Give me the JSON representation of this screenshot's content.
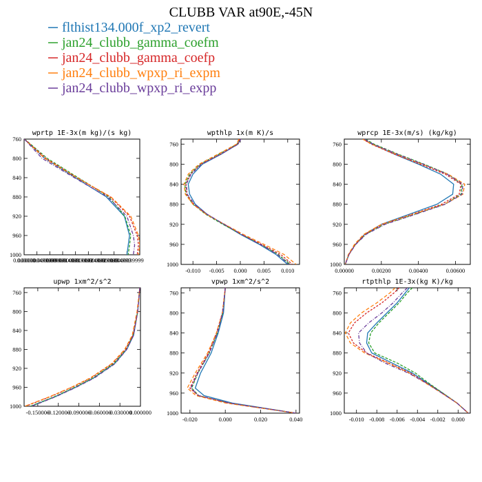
{
  "title": "CLUBB VAR at90E,-45N",
  "legend": [
    {
      "label": "flthist134.000f_xp2_revert",
      "color": "#1f77b4"
    },
    {
      "label": "jan24_clubb_gamma_coefm",
      "color": "#2ca02c"
    },
    {
      "label": "jan24_clubb_gamma_coefp",
      "color": "#d62728"
    },
    {
      "label": "jan24_clubb_wpxp_ri_expm",
      "color": "#ff7f0e"
    },
    {
      "label": "jan24_clubb_wpxp_ri_expp",
      "color": "#6a3d9a"
    }
  ],
  "chart_data": [
    {
      "type": "line",
      "title": "wprtp  1E-3x(m kg)/(s kg)",
      "ylim": [
        760,
        1000
      ],
      "yticks": [
        760,
        800,
        840,
        880,
        920,
        960,
        1000
      ],
      "y_reversed": true,
      "xlim": [
        0.0,
        4.5e-06
      ],
      "xtick_labels": [
        "0.000000",
        "0.000000499999",
        "0.0000009999",
        "0.0000014999",
        "0.0000019999",
        "0.0000024999",
        "0.0000029999",
        "0.0000034999",
        "0.0000039999"
      ],
      "y": [
        760,
        800,
        840,
        880,
        920,
        960,
        980,
        1000
      ],
      "series": [
        {
          "name": "flthist134.000f_xp2_revert",
          "values": [
            1e-08,
            8e-07,
            2e-06,
            3.2e-06,
            3.9e-06,
            4.1e-06,
            4.05e-06,
            4e-06
          ]
        },
        {
          "name": "jan24_clubb_gamma_coefm",
          "values": [
            2e-08,
            9e-07,
            2.1e-06,
            3.3e-06,
            3.92e-06,
            4.15e-06,
            4.1e-06,
            4.05e-06
          ]
        },
        {
          "name": "jan24_clubb_gamma_coefp",
          "values": [
            1e-08,
            8.5e-07,
            2.05e-06,
            3.35e-06,
            4.1e-06,
            4.4e-06,
            4.45e-06,
            4.4e-06
          ]
        },
        {
          "name": "jan24_clubb_wpxp_ri_expm",
          "values": [
            1e-08,
            8e-07,
            2.05e-06,
            3.38e-06,
            4.15e-06,
            4.45e-06,
            4.5e-06,
            4.45e-06
          ]
        },
        {
          "name": "jan24_clubb_wpxp_ri_expp",
          "values": [
            1e-08,
            7e-07,
            1.95e-06,
            3.25e-06,
            4e-06,
            4.25e-06,
            4.3e-06,
            4.25e-06
          ]
        }
      ]
    },
    {
      "type": "line",
      "title": "wpthlp  1x(m K)/s",
      "ylim": [
        750,
        1000
      ],
      "yticks": [
        760,
        800,
        840,
        880,
        920,
        960,
        1000
      ],
      "y_reversed": true,
      "xlim": [
        -0.0125,
        0.0125
      ],
      "xticks": [
        -0.01,
        -0.005,
        0.0,
        0.005,
        0.01
      ],
      "xtick_labels": [
        "-0.010",
        "-0.005",
        "0.000",
        "0.005",
        "0.010"
      ],
      "y": [
        750,
        760,
        780,
        800,
        820,
        840,
        860,
        880,
        900,
        920,
        940,
        960,
        980,
        1000
      ],
      "series": [
        {
          "name": "flthist134.000f_xp2_revert",
          "values": [
            0.0,
            -0.0005,
            -0.004,
            -0.008,
            -0.01,
            -0.011,
            -0.0107,
            -0.0095,
            -0.007,
            -0.0035,
            0.0,
            0.004,
            0.0075,
            0.01
          ]
        },
        {
          "name": "jan24_clubb_gamma_coefm",
          "values": [
            -0.0002,
            -0.0007,
            -0.0045,
            -0.0085,
            -0.0107,
            -0.0117,
            -0.0115,
            -0.01,
            -0.0073,
            -0.0037,
            0.0002,
            0.0043,
            0.008,
            0.0105
          ]
        },
        {
          "name": "jan24_clubb_gamma_coefp",
          "values": [
            -0.0001,
            -0.0006,
            -0.0042,
            -0.0083,
            -0.0105,
            -0.0115,
            -0.0113,
            -0.0098,
            -0.0071,
            -0.0034,
            0.0003,
            0.0045,
            0.0085,
            0.011
          ]
        },
        {
          "name": "jan24_clubb_wpxp_ri_expm",
          "values": [
            -0.0003,
            -0.0008,
            -0.0047,
            -0.0087,
            -0.011,
            -0.0119,
            -0.0116,
            -0.01,
            -0.0072,
            -0.0033,
            0.0006,
            0.005,
            0.0092,
            0.0118
          ]
        },
        {
          "name": "jan24_clubb_wpxp_ri_expp",
          "values": [
            0.0001,
            -0.0004,
            -0.0041,
            -0.0082,
            -0.0104,
            -0.0114,
            -0.0112,
            -0.0097,
            -0.007,
            -0.0034,
            0.0002,
            0.0042,
            0.0078,
            0.0103
          ]
        }
      ]
    },
    {
      "type": "line",
      "title": "wprcp  1E-3x(m/s) (kg/kg)",
      "ylim": [
        750,
        1000
      ],
      "yticks": [
        760,
        800,
        840,
        880,
        920,
        960,
        1000
      ],
      "y_reversed": true,
      "xlim": [
        0.0,
        0.0068
      ],
      "xticks": [
        0.0,
        0.002,
        0.004,
        0.006
      ],
      "xtick_labels": [
        "0.00000",
        "0.00200",
        "0.00400",
        "0.00600"
      ],
      "y": [
        750,
        760,
        780,
        800,
        820,
        840,
        860,
        880,
        900,
        920,
        940,
        960,
        980,
        1000
      ],
      "series": [
        {
          "name": "flthist134.000f_xp2_revert",
          "values": [
            0.00105,
            0.0015,
            0.0027,
            0.004,
            0.0052,
            0.0059,
            0.00585,
            0.005,
            0.0035,
            0.002,
            0.0011,
            0.0006,
            0.00025,
            5e-05
          ]
        },
        {
          "name": "jan24_clubb_gamma_coefm",
          "values": [
            0.00115,
            0.0016,
            0.0029,
            0.0043,
            0.0056,
            0.00635,
            0.0063,
            0.0054,
            0.0038,
            0.00215,
            0.00115,
            0.0006,
            0.00025,
            5e-05
          ]
        },
        {
          "name": "jan24_clubb_gamma_coefp",
          "values": [
            0.001,
            0.00145,
            0.0027,
            0.0041,
            0.00545,
            0.0063,
            0.0062,
            0.00525,
            0.00365,
            0.00205,
            0.0011,
            0.0006,
            0.00025,
            5e-05
          ]
        },
        {
          "name": "jan24_clubb_wpxp_ri_expm",
          "values": [
            0.001,
            0.00148,
            0.0028,
            0.0042,
            0.0056,
            0.0065,
            0.0064,
            0.0054,
            0.0037,
            0.002,
            0.00105,
            0.00055,
            0.00022,
            5e-05
          ]
        },
        {
          "name": "jan24_clubb_wpxp_ri_expp",
          "values": [
            0.0011,
            0.00155,
            0.00285,
            0.00425,
            0.00555,
            0.0064,
            0.00635,
            0.00545,
            0.00385,
            0.0022,
            0.00118,
            0.00062,
            0.00026,
            5e-05
          ]
        }
      ]
    },
    {
      "type": "line",
      "title": "upwp  1xm^2/s^2",
      "ylim": [
        750,
        1000
      ],
      "yticks": [
        760,
        800,
        840,
        880,
        920,
        960,
        1000
      ],
      "y_reversed": true,
      "xlim": [
        -0.17,
        0.0
      ],
      "xticks": [
        -0.15,
        -0.12,
        -0.09,
        -0.06,
        -0.03,
        0.0
      ],
      "xtick_labels": [
        "-0.150000",
        "-0.120000",
        "-0.090000",
        "-0.060000",
        "-0.030000",
        "0.000000"
      ],
      "y": [
        750,
        800,
        850,
        880,
        910,
        940,
        960,
        980,
        1000
      ],
      "series": [
        {
          "name": "flthist134.000f_xp2_revert",
          "values": [
            -0.001,
            -0.004,
            -0.01,
            -0.02,
            -0.038,
            -0.068,
            -0.095,
            -0.125,
            -0.16
          ]
        },
        {
          "name": "jan24_clubb_gamma_coefm",
          "values": [
            -0.001,
            -0.004,
            -0.011,
            -0.021,
            -0.039,
            -0.069,
            -0.096,
            -0.126,
            -0.161
          ]
        },
        {
          "name": "jan24_clubb_gamma_coefp",
          "values": [
            -0.001,
            -0.004,
            -0.011,
            -0.022,
            -0.041,
            -0.072,
            -0.1,
            -0.132,
            -0.168
          ]
        },
        {
          "name": "jan24_clubb_wpxp_ri_expm",
          "values": [
            -0.001,
            -0.005,
            -0.012,
            -0.023,
            -0.042,
            -0.073,
            -0.101,
            -0.133,
            -0.169
          ]
        },
        {
          "name": "jan24_clubb_wpxp_ri_expp",
          "values": [
            -0.001,
            -0.004,
            -0.01,
            -0.02,
            -0.037,
            -0.067,
            -0.094,
            -0.124,
            -0.159
          ]
        }
      ]
    },
    {
      "type": "line",
      "title": "vpwp  1xm^2/s^2",
      "ylim": [
        750,
        1000
      ],
      "yticks": [
        760,
        800,
        840,
        880,
        920,
        960,
        1000
      ],
      "y_reversed": true,
      "xlim": [
        -0.025,
        0.042
      ],
      "xticks": [
        -0.02,
        0.0,
        0.02,
        0.04
      ],
      "xtick_labels": [
        "-0.020",
        "0.000",
        "0.020",
        "0.040"
      ],
      "y": [
        750,
        760,
        800,
        840,
        880,
        920,
        950,
        965,
        980,
        1000
      ],
      "series": [
        {
          "name": "flthist134.000f_xp2_revert",
          "values": [
            0.0,
            -0.0002,
            -0.001,
            -0.004,
            -0.008,
            -0.014,
            -0.017,
            -0.012,
            0.004,
            0.04
          ]
        },
        {
          "name": "jan24_clubb_gamma_coefm",
          "values": [
            0.0,
            -0.0003,
            -0.0015,
            -0.0045,
            -0.009,
            -0.0155,
            -0.019,
            -0.015,
            0.002,
            0.04
          ]
        },
        {
          "name": "jan24_clubb_gamma_coefp",
          "values": [
            0.0,
            -0.0003,
            -0.0017,
            -0.005,
            -0.0095,
            -0.016,
            -0.02,
            -0.0155,
            0.002,
            0.04
          ]
        },
        {
          "name": "jan24_clubb_wpxp_ri_expm",
          "values": [
            0.0,
            -0.0003,
            -0.0016,
            -0.005,
            -0.01,
            -0.017,
            -0.0215,
            -0.0165,
            0.0005,
            0.04
          ]
        },
        {
          "name": "jan24_clubb_wpxp_ri_expp",
          "values": [
            0.0,
            -0.0003,
            -0.0015,
            -0.0045,
            -0.009,
            -0.0155,
            -0.0195,
            -0.015,
            0.0025,
            0.04
          ]
        }
      ]
    },
    {
      "type": "line",
      "title": "rtpthlp  1E-3x(kg K)/kg",
      "ylim": [
        750,
        1000
      ],
      "yticks": [
        760,
        800,
        840,
        880,
        920,
        960,
        1000
      ],
      "y_reversed": true,
      "xlim": [
        -0.0112,
        0.0012
      ],
      "xticks": [
        -0.01,
        -0.008,
        -0.006,
        -0.004,
        -0.002,
        0.0
      ],
      "xtick_labels": [
        "-0.010",
        "-0.008",
        "-0.006",
        "-0.004",
        "-0.002",
        "0.000"
      ],
      "y": [
        750,
        760,
        780,
        800,
        820,
        840,
        860,
        880,
        900,
        920,
        940,
        960,
        980,
        1000
      ],
      "series": [
        {
          "name": "flthist134.000f_xp2_revert",
          "values": [
            -0.0048,
            -0.0052,
            -0.006,
            -0.007,
            -0.008,
            -0.0089,
            -0.009,
            -0.0085,
            -0.0065,
            -0.0045,
            -0.003,
            -0.0015,
            -0.0001,
            0.001
          ]
        },
        {
          "name": "jan24_clubb_gamma_coefm",
          "values": [
            -0.0045,
            -0.005,
            -0.0058,
            -0.0068,
            -0.0078,
            -0.0086,
            -0.0088,
            -0.0082,
            -0.006,
            -0.0042,
            -0.0029,
            -0.0015,
            -0.0001,
            0.001
          ]
        },
        {
          "name": "jan24_clubb_gamma_coefp",
          "values": [
            -0.0058,
            -0.0063,
            -0.0075,
            -0.009,
            -0.0102,
            -0.0108,
            -0.0103,
            -0.009,
            -0.0068,
            -0.0047,
            -0.0031,
            -0.0016,
            -0.0001,
            0.001
          ]
        },
        {
          "name": "jan24_clubb_wpxp_ri_expm",
          "values": [
            -0.0062,
            -0.0067,
            -0.008,
            -0.0095,
            -0.0106,
            -0.0111,
            -0.0106,
            -0.0092,
            -0.0069,
            -0.0048,
            -0.0032,
            -0.0016,
            -0.0001,
            0.001
          ]
        },
        {
          "name": "jan24_clubb_wpxp_ri_expp",
          "values": [
            -0.005,
            -0.0055,
            -0.0064,
            -0.0075,
            -0.0088,
            -0.0098,
            -0.0097,
            -0.009,
            -0.0072,
            -0.0049,
            -0.0031,
            -0.0016,
            -0.0001,
            0.001
          ]
        }
      ]
    }
  ]
}
